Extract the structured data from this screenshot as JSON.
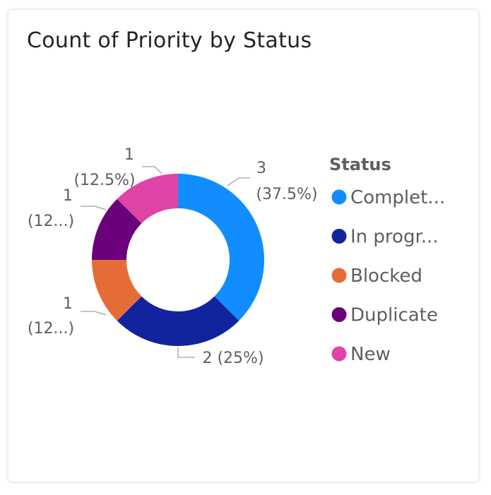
{
  "chart_data": {
    "type": "pie",
    "variant": "donut",
    "title": "Count of Priority by Status",
    "legend": {
      "title": "Status",
      "placement": "right",
      "items": [
        "Complet...",
        "In progr...",
        "Blocked",
        "Duplicate",
        "New"
      ]
    },
    "slices": [
      {
        "label": "Completed",
        "value": 3,
        "percent": 37.5,
        "color": "#118DFF",
        "data_label": [
          "3",
          "(37.5%)"
        ]
      },
      {
        "label": "In progress",
        "value": 2,
        "percent": 25,
        "color": "#12239E",
        "data_label": [
          "2 (25%)"
        ]
      },
      {
        "label": "Blocked",
        "value": 1,
        "percent": 12.5,
        "color": "#E66C37",
        "data_label": [
          "1",
          "(12...)"
        ]
      },
      {
        "label": "Duplicate",
        "value": 1,
        "percent": 12.5,
        "color": "#6B007B",
        "data_label": [
          "1",
          "(12...)"
        ]
      },
      {
        "label": "New",
        "value": 1,
        "percent": 12.5,
        "color": "#E044A7",
        "data_label": [
          "1",
          "(12.5%)"
        ]
      }
    ]
  }
}
